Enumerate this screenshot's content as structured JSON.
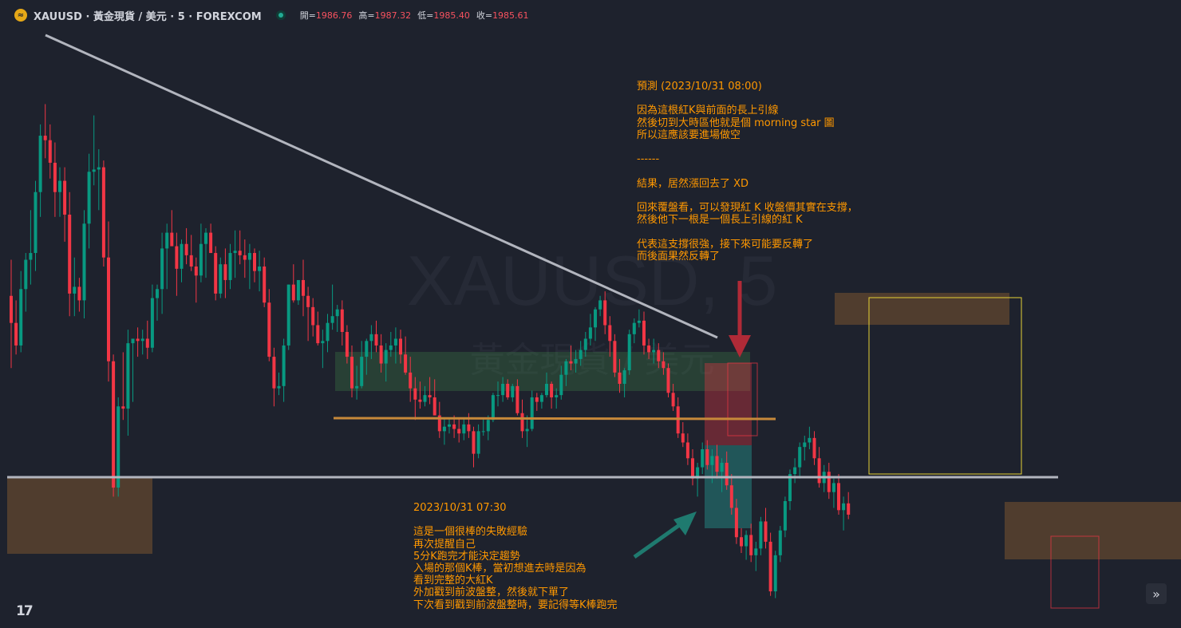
{
  "header": {
    "title": "XAUUSD · 黃金現貨 / 美元 · 5 · FOREXCOM",
    "logo_glyph": "≈",
    "ohlc": [
      {
        "label": "開=",
        "value": "1986.76"
      },
      {
        "label": "高=",
        "value": "1987.32"
      },
      {
        "label": "低=",
        "value": "1985.40"
      },
      {
        "label": "收=",
        "value": "1985.61"
      }
    ]
  },
  "watermark": {
    "symbol": "XAUUSD, 5",
    "description": "黃金現貨 / 美元"
  },
  "notes": {
    "top": "預測 (2023/10/31 08:00)\n\n因為這根紅K與前面的長上引線\n然後切到大時區他就是個 morning star 圖\n所以這應該要進場做空\n\n------\n\n結果，居然漲回去了 XD\n\n回來覆盤看，可以發現紅 K 收盤價其實在支撐，\n然後他下一根是一個長上引線的紅 K\n\n代表這支撐很強，接下來可能要反轉了\n而後面果然反轉了",
    "bottom": "2023/10/31 07:30\n\n這是一個很棒的失敗經驗\n再次提醒自己\n5分K跑完才能決定趨勢\n入場的那個K棒，當初想進去時是因為\n看到完整的大紅K\n外加戳到前波盤整，然後就下單了\n下次看到戳到前波盤整時，要記得等K棒跑完"
  },
  "tv_logo": "17",
  "scroll_icon": "»",
  "colors": {
    "background": "#1e222d",
    "up": "#089981",
    "down": "#f23645",
    "note": "#ff9800",
    "trendline": "#b2b5be",
    "support": "#c7893a"
  },
  "chart_data": {
    "type": "candlestick",
    "symbol": "XAUUSD",
    "timeframe": "5",
    "last": {
      "open": 1986.76,
      "high": 1987.32,
      "low": 1985.4,
      "close": 1985.61
    },
    "price_range": [
      1977.0,
      2003.0
    ],
    "candles": [
      [
        1991.3,
        1992.9,
        1988.1,
        1990.1
      ],
      [
        1990.1,
        1991.1,
        1988.7,
        1989.1
      ],
      [
        1989.1,
        1992.4,
        1988.8,
        1991.6
      ],
      [
        1991.6,
        1993.2,
        1990.6,
        1992.9
      ],
      [
        1992.9,
        1995.1,
        1991.8,
        1993.2
      ],
      [
        1993.2,
        1996.4,
        1992.4,
        1995.9
      ],
      [
        1995.9,
        1998.9,
        1994.8,
        1998.4
      ],
      [
        1998.4,
        1999.8,
        1997.4,
        1998.2
      ],
      [
        1998.2,
        1998.9,
        1996.5,
        1997.2
      ],
      [
        1997.2,
        1998.1,
        1994.8,
        1995.9
      ],
      [
        1995.9,
        1997.0,
        1994.8,
        1996.4
      ],
      [
        1996.4,
        1997.0,
        1993.7,
        1994.9
      ],
      [
        1994.9,
        1995.9,
        1990.4,
        1991.4
      ],
      [
        1991.4,
        1993.0,
        1990.4,
        1991.7
      ],
      [
        1991.7,
        1992.1,
        1990.6,
        1991.1
      ],
      [
        1991.1,
        1995.1,
        1990.3,
        1994.5
      ],
      [
        1994.5,
        1997.6,
        1993.4,
        1996.8
      ],
      [
        1996.8,
        1999.3,
        1996.2,
        1996.9
      ],
      [
        1996.9,
        1997.8,
        1995.1,
        1997.0
      ],
      [
        1997.0,
        1997.3,
        1992.6,
        1993.0
      ],
      [
        1993.0,
        1994.6,
        1987.5,
        1988.4
      ],
      [
        1988.4,
        1988.7,
        1982.4,
        1982.8
      ],
      [
        1982.8,
        1986.8,
        1982.4,
        1986.4
      ],
      [
        1986.4,
        1988.8,
        1985.8,
        1986.3
      ],
      [
        1986.3,
        1989.8,
        1985.1,
        1989.2
      ],
      [
        1989.2,
        1989.4,
        1986.6,
        1989.4
      ],
      [
        1989.4,
        1989.9,
        1988.6,
        1989.3
      ],
      [
        1989.3,
        1989.8,
        1988.7,
        1989.4
      ],
      [
        1989.4,
        1990.2,
        1988.5,
        1989.0
      ],
      [
        1989.0,
        1991.8,
        1988.8,
        1991.2
      ],
      [
        1991.2,
        1991.8,
        1990.2,
        1991.6
      ],
      [
        1991.6,
        1994.1,
        1990.5,
        1993.4
      ],
      [
        1993.4,
        1994.5,
        1991.6,
        1994.1
      ],
      [
        1994.1,
        1995.1,
        1993.6,
        1993.5
      ],
      [
        1993.5,
        1994.1,
        1991.3,
        1992.5
      ],
      [
        1992.5,
        1993.8,
        1991.9,
        1993.6
      ],
      [
        1993.6,
        1994.3,
        1992.7,
        1993.1
      ],
      [
        1993.1,
        1994.0,
        1992.4,
        1992.6
      ],
      [
        1992.6,
        1993.0,
        1991.0,
        1992.2
      ],
      [
        1992.2,
        1994.5,
        1991.9,
        1993.6
      ],
      [
        1993.6,
        1994.3,
        1992.1,
        1994.1
      ],
      [
        1994.1,
        1994.5,
        1993.2,
        1993.2
      ],
      [
        1993.2,
        1993.5,
        1991.1,
        1991.4
      ],
      [
        1991.4,
        1993.0,
        1991.2,
        1992.7
      ],
      [
        1992.7,
        1993.4,
        1991.2,
        1992.0
      ],
      [
        1992.0,
        1993.6,
        1991.6,
        1993.2
      ],
      [
        1993.2,
        1994.2,
        1992.1,
        1993.3
      ],
      [
        1993.3,
        1994.2,
        1992.7,
        1993.1
      ],
      [
        1993.1,
        1993.8,
        1992.1,
        1992.9
      ],
      [
        1992.9,
        1993.6,
        1991.6,
        1993.2
      ],
      [
        1993.2,
        1993.4,
        1991.9,
        1992.4
      ],
      [
        1992.4,
        1993.3,
        1991.5,
        1992.6
      ],
      [
        1992.6,
        1993.0,
        1990.8,
        1991.0
      ],
      [
        1991.0,
        1991.6,
        1988.4,
        1988.6
      ],
      [
        1988.6,
        1989.0,
        1986.4,
        1987.2
      ],
      [
        1987.2,
        1987.9,
        1986.9,
        1987.3
      ],
      [
        1987.3,
        1989.4,
        1986.6,
        1989.1
      ],
      [
        1989.1,
        1991.8,
        1988.9,
        1991.8
      ],
      [
        1991.8,
        1992.7,
        1991.0,
        1991.1
      ],
      [
        1991.1,
        1992.0,
        1990.9,
        1992.0
      ],
      [
        1992.0,
        1992.9,
        1990.4,
        1991.3
      ],
      [
        1991.3,
        1991.7,
        1989.3,
        1990.8
      ],
      [
        1990.8,
        1991.2,
        1989.5,
        1990.0
      ],
      [
        1990.0,
        1990.6,
        1989.1,
        1989.2
      ],
      [
        1989.2,
        1989.8,
        1988.1,
        1989.3
      ],
      [
        1989.3,
        1990.5,
        1988.8,
        1990.1
      ],
      [
        1990.1,
        1991.8,
        1989.8,
        1990.4
      ],
      [
        1990.4,
        1990.9,
        1989.7,
        1990.7
      ],
      [
        1990.7,
        1991.1,
        1989.1,
        1989.7
      ],
      [
        1989.7,
        1990.0,
        1988.3,
        1988.6
      ],
      [
        1988.6,
        1989.1,
        1986.8,
        1987.2
      ],
      [
        1987.2,
        1988.2,
        1986.7,
        1987.3
      ],
      [
        1987.3,
        1989.3,
        1987.2,
        1988.6
      ],
      [
        1988.6,
        1989.4,
        1987.8,
        1989.3
      ],
      [
        1989.3,
        1990.0,
        1988.5,
        1989.6
      ],
      [
        1989.6,
        1990.2,
        1988.8,
        1989.1
      ],
      [
        1989.1,
        1989.6,
        1987.9,
        1988.3
      ],
      [
        1988.3,
        1989.2,
        1987.5,
        1988.9
      ],
      [
        1988.9,
        1989.7,
        1988.6,
        1989.1
      ],
      [
        1989.1,
        1989.9,
        1988.3,
        1989.4
      ],
      [
        1989.4,
        1989.8,
        1988.3,
        1988.7
      ],
      [
        1988.7,
        1989.5,
        1987.8,
        1987.9
      ],
      [
        1987.9,
        1988.6,
        1986.6,
        1987.2
      ],
      [
        1987.2,
        1987.7,
        1985.8,
        1986.7
      ],
      [
        1986.7,
        1987.5,
        1986.3,
        1986.6
      ],
      [
        1986.6,
        1987.3,
        1986.4,
        1986.9
      ],
      [
        1986.9,
        1987.7,
        1986.5,
        1986.8
      ],
      [
        1986.8,
        1987.6,
        1986.0,
        1986.0
      ],
      [
        1986.0,
        1986.6,
        1985.0,
        1985.3
      ],
      [
        1985.3,
        1985.9,
        1984.7,
        1985.5
      ],
      [
        1985.5,
        1985.9,
        1985.2,
        1985.6
      ],
      [
        1985.6,
        1986.0,
        1985.0,
        1985.4
      ],
      [
        1985.4,
        1985.9,
        1984.8,
        1985.2
      ],
      [
        1985.2,
        1985.9,
        1984.9,
        1985.6
      ],
      [
        1985.6,
        1986.1,
        1985.0,
        1985.3
      ],
      [
        1985.3,
        1985.5,
        1983.7,
        1984.3
      ],
      [
        1984.3,
        1985.6,
        1984.1,
        1985.3
      ],
      [
        1985.3,
        1985.9,
        1985.1,
        1985.3
      ],
      [
        1985.3,
        1986.0,
        1984.9,
        1985.8
      ],
      [
        1985.8,
        1987.0,
        1985.7,
        1986.9
      ],
      [
        1986.9,
        1987.5,
        1986.4,
        1986.9
      ],
      [
        1986.9,
        1987.7,
        1986.6,
        1987.4
      ],
      [
        1987.4,
        1987.6,
        1986.7,
        1986.8
      ],
      [
        1986.8,
        1987.4,
        1986.6,
        1987.3
      ],
      [
        1987.3,
        1987.6,
        1986.0,
        1986.1
      ],
      [
        1986.1,
        1986.7,
        1985.0,
        1985.3
      ],
      [
        1985.3,
        1986.0,
        1984.6,
        1985.4
      ],
      [
        1985.4,
        1987.1,
        1985.3,
        1986.8
      ],
      [
        1986.8,
        1987.0,
        1986.2,
        1986.6
      ],
      [
        1986.6,
        1987.0,
        1986.3,
        1986.9
      ],
      [
        1986.9,
        1987.9,
        1986.8,
        1987.4
      ],
      [
        1987.4,
        1987.5,
        1986.3,
        1986.8
      ],
      [
        1986.8,
        1987.2,
        1986.3,
        1986.9
      ],
      [
        1986.9,
        1988.2,
        1986.7,
        1987.8
      ],
      [
        1987.8,
        1988.5,
        1987.3,
        1988.4
      ],
      [
        1988.4,
        1989.1,
        1988.0,
        1988.3
      ],
      [
        1988.3,
        1988.9,
        1987.9,
        1988.5
      ],
      [
        1988.5,
        1989.3,
        1988.2,
        1988.9
      ],
      [
        1988.9,
        1989.7,
        1988.6,
        1989.4
      ],
      [
        1989.4,
        1990.5,
        1989.1,
        1989.9
      ],
      [
        1989.9,
        1990.8,
        1989.3,
        1990.7
      ],
      [
        1990.7,
        1991.3,
        1990.4,
        1991.1
      ],
      [
        1991.1,
        1991.5,
        1989.6,
        1990.0
      ],
      [
        1990.0,
        1990.4,
        1988.6,
        1989.3
      ],
      [
        1989.3,
        1989.6,
        1987.7,
        1987.9
      ],
      [
        1987.9,
        1988.5,
        1987.0,
        1987.4
      ],
      [
        1987.4,
        1988.1,
        1986.8,
        1988.0
      ],
      [
        1988.0,
        1989.8,
        1987.8,
        1989.6
      ],
      [
        1989.6,
        1990.3,
        1989.2,
        1990.1
      ],
      [
        1990.1,
        1990.7,
        1989.9,
        1990.2
      ],
      [
        1990.2,
        1990.6,
        1988.7,
        1989.1
      ],
      [
        1989.1,
        1989.4,
        1988.5,
        1988.8
      ],
      [
        1988.8,
        1989.4,
        1988.3,
        1988.9
      ],
      [
        1988.9,
        1989.2,
        1988.1,
        1988.4
      ],
      [
        1988.4,
        1988.8,
        1987.8,
        1988.1
      ],
      [
        1988.1,
        1988.3,
        1986.8,
        1987.0
      ],
      [
        1987.0,
        1987.4,
        1986.2,
        1986.4
      ],
      [
        1986.4,
        1986.8,
        1985.0,
        1985.2
      ],
      [
        1985.2,
        1985.7,
        1984.6,
        1984.8
      ],
      [
        1984.8,
        1985.2,
        1983.8,
        1984.1
      ],
      [
        1984.1,
        1984.5,
        1982.9,
        1983.2
      ],
      [
        1983.2,
        1983.9,
        1982.4,
        1983.7
      ],
      [
        1983.7,
        1984.8,
        1983.4,
        1984.5
      ],
      [
        1984.5,
        1984.9,
        1983.6,
        1983.8
      ],
      [
        1983.8,
        1984.5,
        1983.0,
        1984.2
      ],
      [
        1984.2,
        1984.7,
        1983.2,
        1983.5
      ],
      [
        1983.5,
        1984.1,
        1982.6,
        1983.9
      ],
      [
        1983.9,
        1984.4,
        1982.7,
        1982.9
      ],
      [
        1982.9,
        1983.4,
        1981.6,
        1981.9
      ],
      [
        1981.9,
        1982.3,
        1980.3,
        1980.6
      ],
      [
        1980.6,
        1981.0,
        1979.9,
        1980.2
      ],
      [
        1980.2,
        1980.9,
        1979.6,
        1980.7
      ],
      [
        1980.7,
        1981.2,
        1979.5,
        1979.8
      ],
      [
        1979.8,
        1980.4,
        1979.1,
        1980.1
      ],
      [
        1980.1,
        1981.5,
        1979.8,
        1981.3
      ],
      [
        1981.3,
        1981.9,
        1980.1,
        1980.4
      ],
      [
        1980.4,
        1980.8,
        1978.0,
        1978.2
      ],
      [
        1978.2,
        1980.0,
        1977.9,
        1979.8
      ],
      [
        1979.8,
        1981.1,
        1979.5,
        1980.9
      ],
      [
        1980.9,
        1982.4,
        1980.6,
        1982.2
      ],
      [
        1982.2,
        1983.6,
        1981.8,
        1983.4
      ],
      [
        1983.4,
        1984.1,
        1983.0,
        1983.7
      ],
      [
        1983.7,
        1984.8,
        1983.2,
        1984.6
      ],
      [
        1984.6,
        1985.1,
        1984.0,
        1984.8
      ],
      [
        1984.8,
        1985.5,
        1984.5,
        1985.0
      ],
      [
        1985.0,
        1985.3,
        1983.8,
        1984.1
      ],
      [
        1984.1,
        1984.6,
        1982.8,
        1983.0
      ],
      [
        1983.0,
        1983.8,
        1982.6,
        1983.5
      ],
      [
        1983.5,
        1983.9,
        1982.3,
        1982.6
      ],
      [
        1982.6,
        1983.2,
        1981.9,
        1983.0
      ],
      [
        1983.0,
        1983.4,
        1981.6,
        1981.8
      ],
      [
        1981.8,
        1982.4,
        1980.9,
        1982.1
      ],
      [
        1982.1,
        1982.6,
        1981.4,
        1981.6
      ]
    ]
  }
}
